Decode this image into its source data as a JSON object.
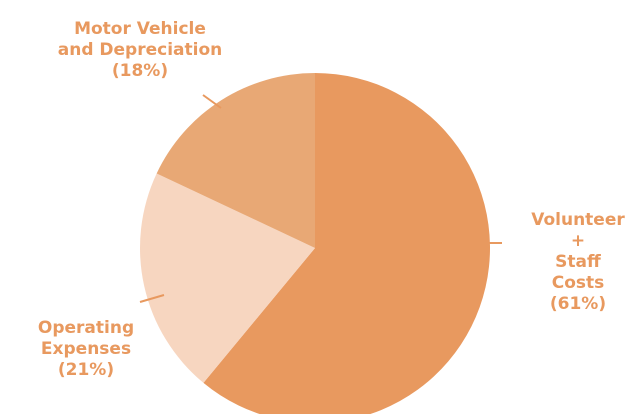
{
  "chart_data": {
    "type": "pie",
    "categories": [
      "Volunteer +\nStaff Costs",
      "Operating\nExpenses",
      "Motor Vehicle\nand Depreciation"
    ],
    "values": [
      61,
      21,
      18
    ],
    "value_labels": [
      "(61%)",
      "(21%)",
      "(18%)"
    ],
    "colors": [
      "#e8995f",
      "#f7d6c0",
      "#e8a875"
    ]
  }
}
